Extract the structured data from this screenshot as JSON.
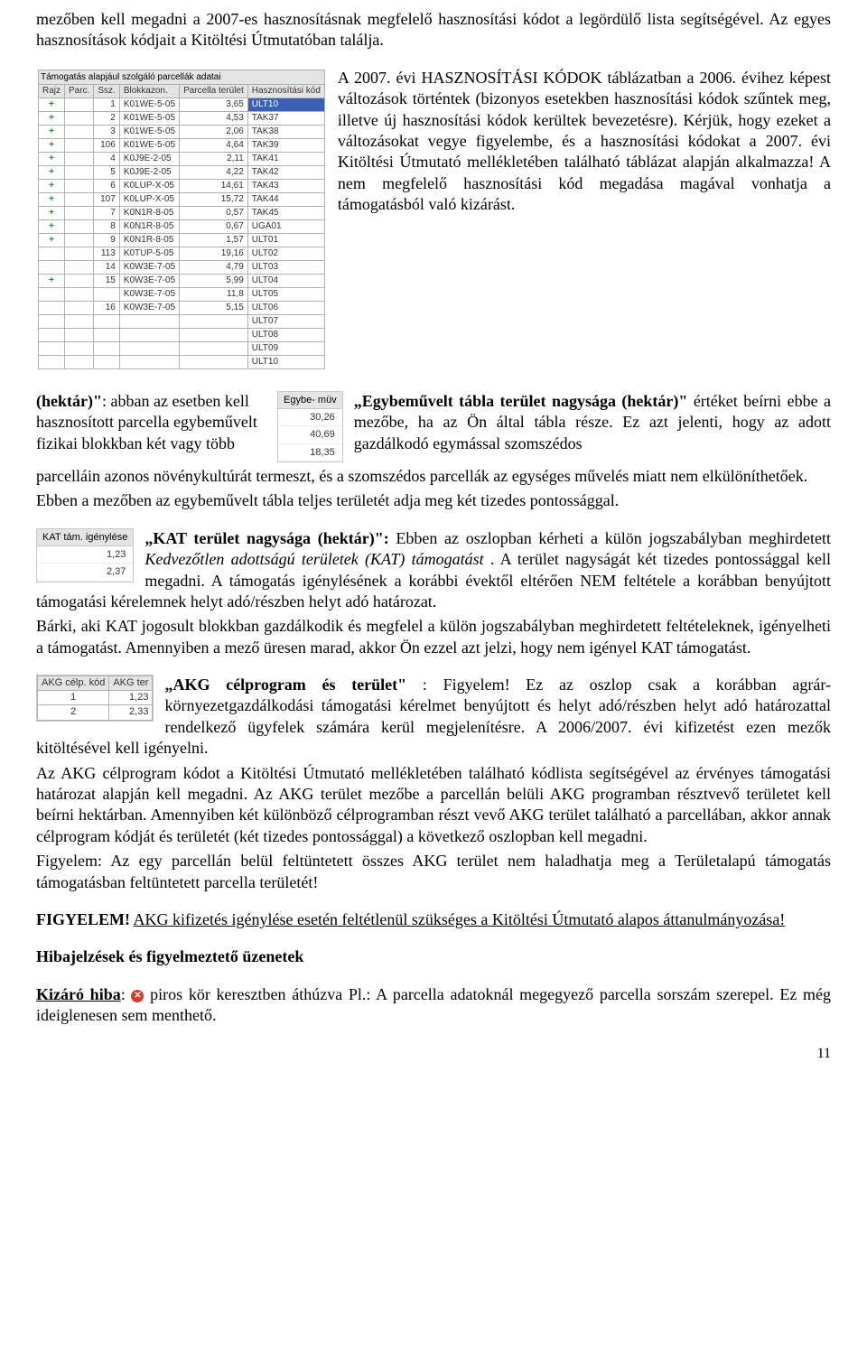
{
  "intro": {
    "p1": "mezőben kell megadni a 2007-es hasznosításnak megfelelő hasznosítási kódot a legördülő lista segítségével. Az egyes hasznosítások kódjait a Kitöltési Útmutatóban találja."
  },
  "parcel_table": {
    "title": "Támogatás alapjául szolgáló parcellák adatai",
    "headers": [
      "Rajz",
      "Parc.",
      "Ssz.",
      "Blokkazon.",
      "Parcella terület",
      "Hasznosítási kód"
    ],
    "rows": [
      [
        "+",
        "",
        "1",
        "K01WE-5-05",
        "3,65",
        "ULT10"
      ],
      [
        "+",
        "",
        "2",
        "K01WE-5-05",
        "4,53",
        "TAK37"
      ],
      [
        "+",
        "",
        "3",
        "K01WE-5-05",
        "2,06",
        "TAK38"
      ],
      [
        "+",
        "",
        "106",
        "K01WE-5-05",
        "4,64",
        "TAK39"
      ],
      [
        "+",
        "",
        "4",
        "K0J9E-2-05",
        "2,11",
        "TAK41"
      ],
      [
        "+",
        "",
        "5",
        "K0J9E-2-05",
        "4,22",
        "TAK42"
      ],
      [
        "+",
        "",
        "6",
        "K0LUP-X-05",
        "14,61",
        "TAK43"
      ],
      [
        "+",
        "",
        "107",
        "K0LUP-X-05",
        "15,72",
        "TAK44"
      ],
      [
        "+",
        "",
        "7",
        "K0N1R-8-05",
        "0,57",
        "TAK45"
      ],
      [
        "+",
        "",
        "8",
        "K0N1R-8-05",
        "0,67",
        "UGA01"
      ],
      [
        "+",
        "",
        "9",
        "K0N1R-8-05",
        "1,57",
        "ULT01"
      ],
      [
        "",
        "",
        "113",
        "K0TUP-5-05",
        "19,16",
        "ULT02"
      ],
      [
        "",
        "",
        "14",
        "K0W3E-7-05",
        "4,79",
        "ULT03"
      ],
      [
        "+",
        "",
        "15",
        "K0W3E-7-05",
        "5,99",
        "ULT04"
      ],
      [
        "",
        "",
        "",
        "K0W3E-7-05",
        "11,8",
        "ULT05"
      ],
      [
        "",
        "",
        "16",
        "K0W3E-7-05",
        "5,15",
        "ULT06"
      ],
      [
        "",
        "",
        "",
        "",
        "",
        "ULT07"
      ],
      [
        "",
        "",
        "",
        "",
        "",
        "ULT08"
      ],
      [
        "",
        "",
        "",
        "",
        "",
        "ULT09"
      ],
      [
        "",
        "",
        "",
        "",
        "",
        "ULT10"
      ]
    ],
    "selected_bg": "#3a5fb5",
    "selected_fg": "#ffffff"
  },
  "kodok": {
    "p1a": "A 2007. évi HASZNOSÍTÁSI KÓDOK táblázatban a 2006. évihez képest változások történtek (bizonyos esetekben hasznosítási kódok szűntek meg, illetve új hasznosítási kódok kerültek bevezetésre). Kérjük, hogy ezeket a változásokat vegye figyelembe, és a hasznosítási kódokat a 2007. évi Kitöltési Útmutató mellékletében található táblázat alapján alkalmazza! A nem megfelelő hasznosítási kód megadása magával vonhatja a támogatásból való kizárást."
  },
  "egybe_img": {
    "header": "Egybe- müv",
    "rows": [
      "30,26",
      "40,69",
      "18,35"
    ]
  },
  "egybe": {
    "lead_bold": "„Egybeművelt tábla terület nagysága (hektár)\"",
    "p1_left": "abban az esetben kell hasznosított parcella egybeművelt fizikai blokkban két vagy több",
    "p1_right_a": "értéket beírni ebbe a mezőbe, ha az Ön által tábla része. Ez azt jelenti, hogy az adott gazdálkodó egymással szomszédos",
    "p2": "parcelláin azonos növénykultúrát termeszt, és a szomszédos parcellák az egységes művelés miatt nem elkülöníthetőek.",
    "p3": "Ebben a mezőben az egybeművelt tábla teljes területét adja meg két tizedes pontossággal."
  },
  "kat_img": {
    "header": "KAT tám. igénylése",
    "rows": [
      "1,23",
      "2,37"
    ]
  },
  "kat": {
    "lead_bold": "„KAT terület nagysága (hektár)\":",
    "p1": " Ebben az oszlopban kérheti a külön jogszabályban meghirdetett ",
    "p1_italic": "Kedvezőtlen adottságú területek (KAT) támogatást",
    "p1_end": ". A terület nagyságát két tizedes pontossággal kell megadni. A támogatás igénylésének a korábbi évektől eltérően NEM feltétele a korábban benyújtott támogatási kérelemnek helyt adó/részben helyt adó határozat.",
    "p2": "Bárki, aki KAT jogosult blokkban gazdálkodik és megfelel a külön jogszabályban meghirdetett feltételeknek, igényelheti a támogatást. Amennyiben a mező üresen marad, akkor Ön ezzel azt jelzi, hogy nem igényel KAT támogatást."
  },
  "akg_img": {
    "headers": [
      "AKG célp. kód",
      "AKG ter"
    ],
    "rows": [
      [
        "1",
        "1,23"
      ],
      [
        "2",
        "2,33"
      ]
    ]
  },
  "akg": {
    "lead_bold": "„AKG célprogram és terület\"",
    "p1": ": Figyelem! Ez az oszlop csak a korábban agrár-környezetgazdálkodási támogatási kérelmet benyújtott és helyt adó/részben helyt adó határozattal rendelkező ügyfelek számára kerül megjelenítésre. A 2006/2007. évi kifizetést ezen mezők kitöltésével kell igényelni.",
    "p2": "Az AKG célprogram kódot a Kitöltési Útmutató mellékletében található kódlista segítségével az érvényes támogatási határozat alapján kell megadni. Az AKG terület mezőbe a parcellán belüli AKG programban résztvevő területet kell beírni hektárban. Amennyiben két különböző célprogramban részt vevő AKG terület található a parcellában, akkor annak célprogram kódját és területét (két tizedes pontossággal) a következő oszlopban kell megadni.",
    "p3": "Figyelem: Az egy parcellán belül feltüntetett összes AKG terület nem haladhatja meg a Területalapú támogatás támogatásban feltüntetett parcella területét!"
  },
  "figyelem": {
    "label": "FIGYELEM!",
    "text": " AKG kifizetés igénylése esetén feltétlenül szükséges a Kitöltési Útmutató alapos áttanulmányozása!"
  },
  "hibajel_title": "Hibajelzések és figyelmeztető üzenetek",
  "kizaro": {
    "label": "Kizáró hiba",
    "text": "piros kör keresztben áthúzva Pl.: A parcella adatoknál megegyező parcella sorszám szerepel. Ez még ideiglenesen sem menthető."
  },
  "pagenum": "11"
}
